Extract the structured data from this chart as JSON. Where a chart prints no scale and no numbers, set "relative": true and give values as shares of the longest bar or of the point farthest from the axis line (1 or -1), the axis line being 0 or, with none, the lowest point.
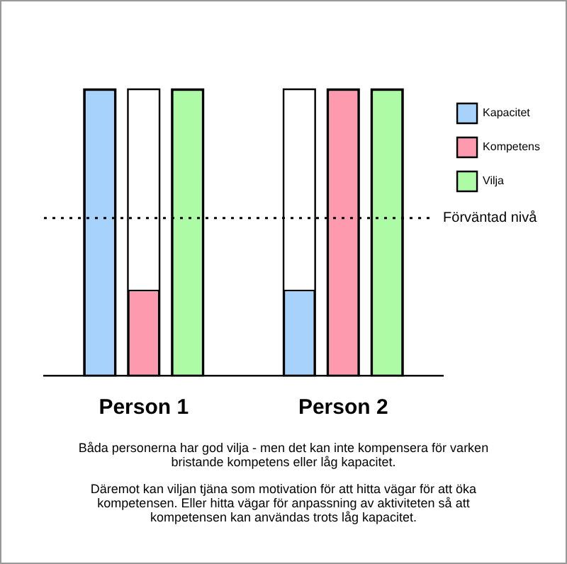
{
  "chart_data": {
    "type": "bar",
    "relative": true,
    "categories": [
      "Person 1",
      "Person 2"
    ],
    "series": [
      {
        "name": "Kapacitet",
        "color": "#a6d2fb",
        "values": [
          1,
          0.3
        ]
      },
      {
        "name": "Kompetens",
        "color": "#fe9aae",
        "values": [
          0.3,
          1
        ]
      },
      {
        "name": "Vilja",
        "color": "#aefba6",
        "values": [
          1,
          1
        ]
      }
    ],
    "ref_lines": [
      {
        "axis": "y",
        "value": 0.55,
        "label": "Förväntad nivå",
        "line_style": "dotted",
        "color": "#000000"
      }
    ],
    "legend": "top right",
    "grid": false,
    "annotations": [
      "Båda personerna har god vilja - men det kan inte kompensera för varken bristande kompetens eller låg kapacitet.",
      "Däremot kan viljan tjäna som motivation för att hitta vägar för att öka kompetensen. Eller hitta vägar för anpassning av aktiviteten så att kompetensen kan användas trots låg kapacitet."
    ]
  }
}
